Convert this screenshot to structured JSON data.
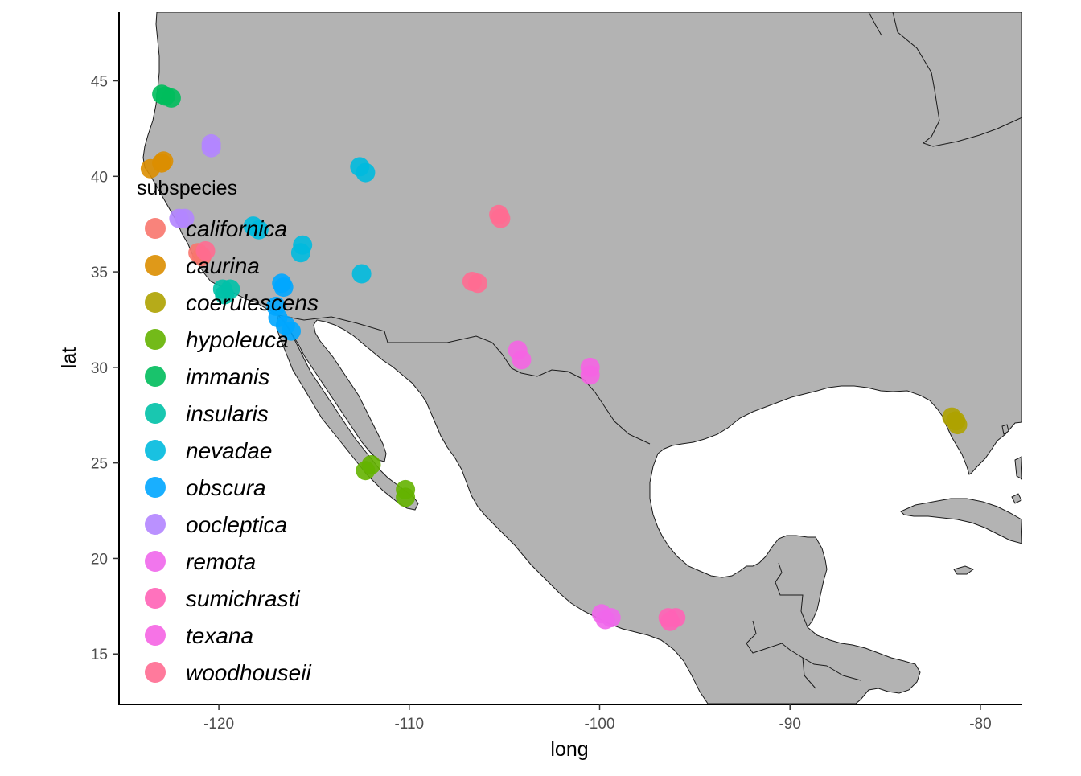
{
  "chart_data": {
    "type": "scatter",
    "basemap": "North America land polygons with country and state borders",
    "xlabel": "long",
    "ylabel": "lat",
    "xlim": [
      -125.2,
      -77.8
    ],
    "ylim": [
      12.4,
      48.6
    ],
    "x_ticks": [
      -120,
      -110,
      -100,
      -90,
      -80
    ],
    "y_ticks": [
      15,
      20,
      25,
      30,
      35,
      40,
      45
    ],
    "grid": false,
    "legend": {
      "title": "subspecies",
      "placement": "inside-left"
    },
    "colors": {
      "land_fill": "#b3b3b3",
      "border": "#1a1a1a",
      "axis": "#000000"
    },
    "series": [
      {
        "name": "californica",
        "color": "#F8766D",
        "points": [
          [
            -121.1,
            36.0
          ],
          [
            -120.9,
            35.8
          ]
        ]
      },
      {
        "name": "caurina",
        "color": "#DB8E00",
        "points": [
          [
            -123.6,
            40.4
          ],
          [
            -123.0,
            40.7
          ],
          [
            -122.9,
            40.8
          ]
        ]
      },
      {
        "name": "coerulescens",
        "color": "#AEA200",
        "points": [
          [
            -81.5,
            27.4
          ],
          [
            -81.3,
            27.2
          ],
          [
            -81.2,
            27.0
          ]
        ]
      },
      {
        "name": "hypoleuca",
        "color": "#64B200",
        "points": [
          [
            -112.0,
            24.9
          ],
          [
            -112.3,
            24.6
          ],
          [
            -110.2,
            23.6
          ],
          [
            -110.2,
            23.2
          ]
        ]
      },
      {
        "name": "immanis",
        "color": "#00BD5C",
        "points": [
          [
            -123.0,
            44.3
          ],
          [
            -122.8,
            44.2
          ],
          [
            -122.5,
            44.1
          ]
        ]
      },
      {
        "name": "insularis",
        "color": "#00C1A7",
        "points": [
          [
            -119.8,
            34.1
          ],
          [
            -119.4,
            34.1
          ],
          [
            -119.7,
            33.8
          ]
        ]
      },
      {
        "name": "nevadae",
        "color": "#00BADE",
        "points": [
          [
            -118.2,
            37.4
          ],
          [
            -117.9,
            37.2
          ],
          [
            -115.6,
            36.4
          ],
          [
            -115.7,
            36.0
          ],
          [
            -112.6,
            40.5
          ],
          [
            -112.3,
            40.2
          ],
          [
            -112.5,
            34.9
          ]
        ]
      },
      {
        "name": "obscura",
        "color": "#00A6FF",
        "points": [
          [
            -116.7,
            34.4
          ],
          [
            -116.6,
            34.2
          ],
          [
            -117.0,
            33.2
          ],
          [
            -116.9,
            32.6
          ],
          [
            -116.5,
            32.2
          ],
          [
            -116.2,
            31.9
          ]
        ]
      },
      {
        "name": "oocleptica",
        "color": "#B385FF",
        "points": [
          [
            -120.4,
            41.7
          ],
          [
            -120.4,
            41.5
          ],
          [
            -122.1,
            37.8
          ],
          [
            -121.8,
            37.8
          ]
        ]
      },
      {
        "name": "remota",
        "color": "#EF67EB",
        "points": [
          [
            -99.9,
            17.1
          ],
          [
            -99.7,
            16.8
          ],
          [
            -99.4,
            16.9
          ]
        ]
      },
      {
        "name": "sumichrasti",
        "color": "#FF63B6",
        "points": [
          [
            -96.4,
            16.9
          ],
          [
            -96.0,
            16.9
          ],
          [
            -96.3,
            16.7
          ]
        ]
      },
      {
        "name": "texana",
        "color": "#F564E3",
        "points": [
          [
            -104.3,
            30.9
          ],
          [
            -104.1,
            30.4
          ],
          [
            -100.5,
            30.0
          ],
          [
            -100.5,
            29.6
          ]
        ]
      },
      {
        "name": "woodhouseii",
        "color": "#FF6C91",
        "points": [
          [
            -105.3,
            38.0
          ],
          [
            -105.2,
            37.8
          ],
          [
            -106.7,
            34.5
          ],
          [
            -106.4,
            34.4
          ],
          [
            -120.7,
            36.1
          ]
        ]
      }
    ]
  }
}
